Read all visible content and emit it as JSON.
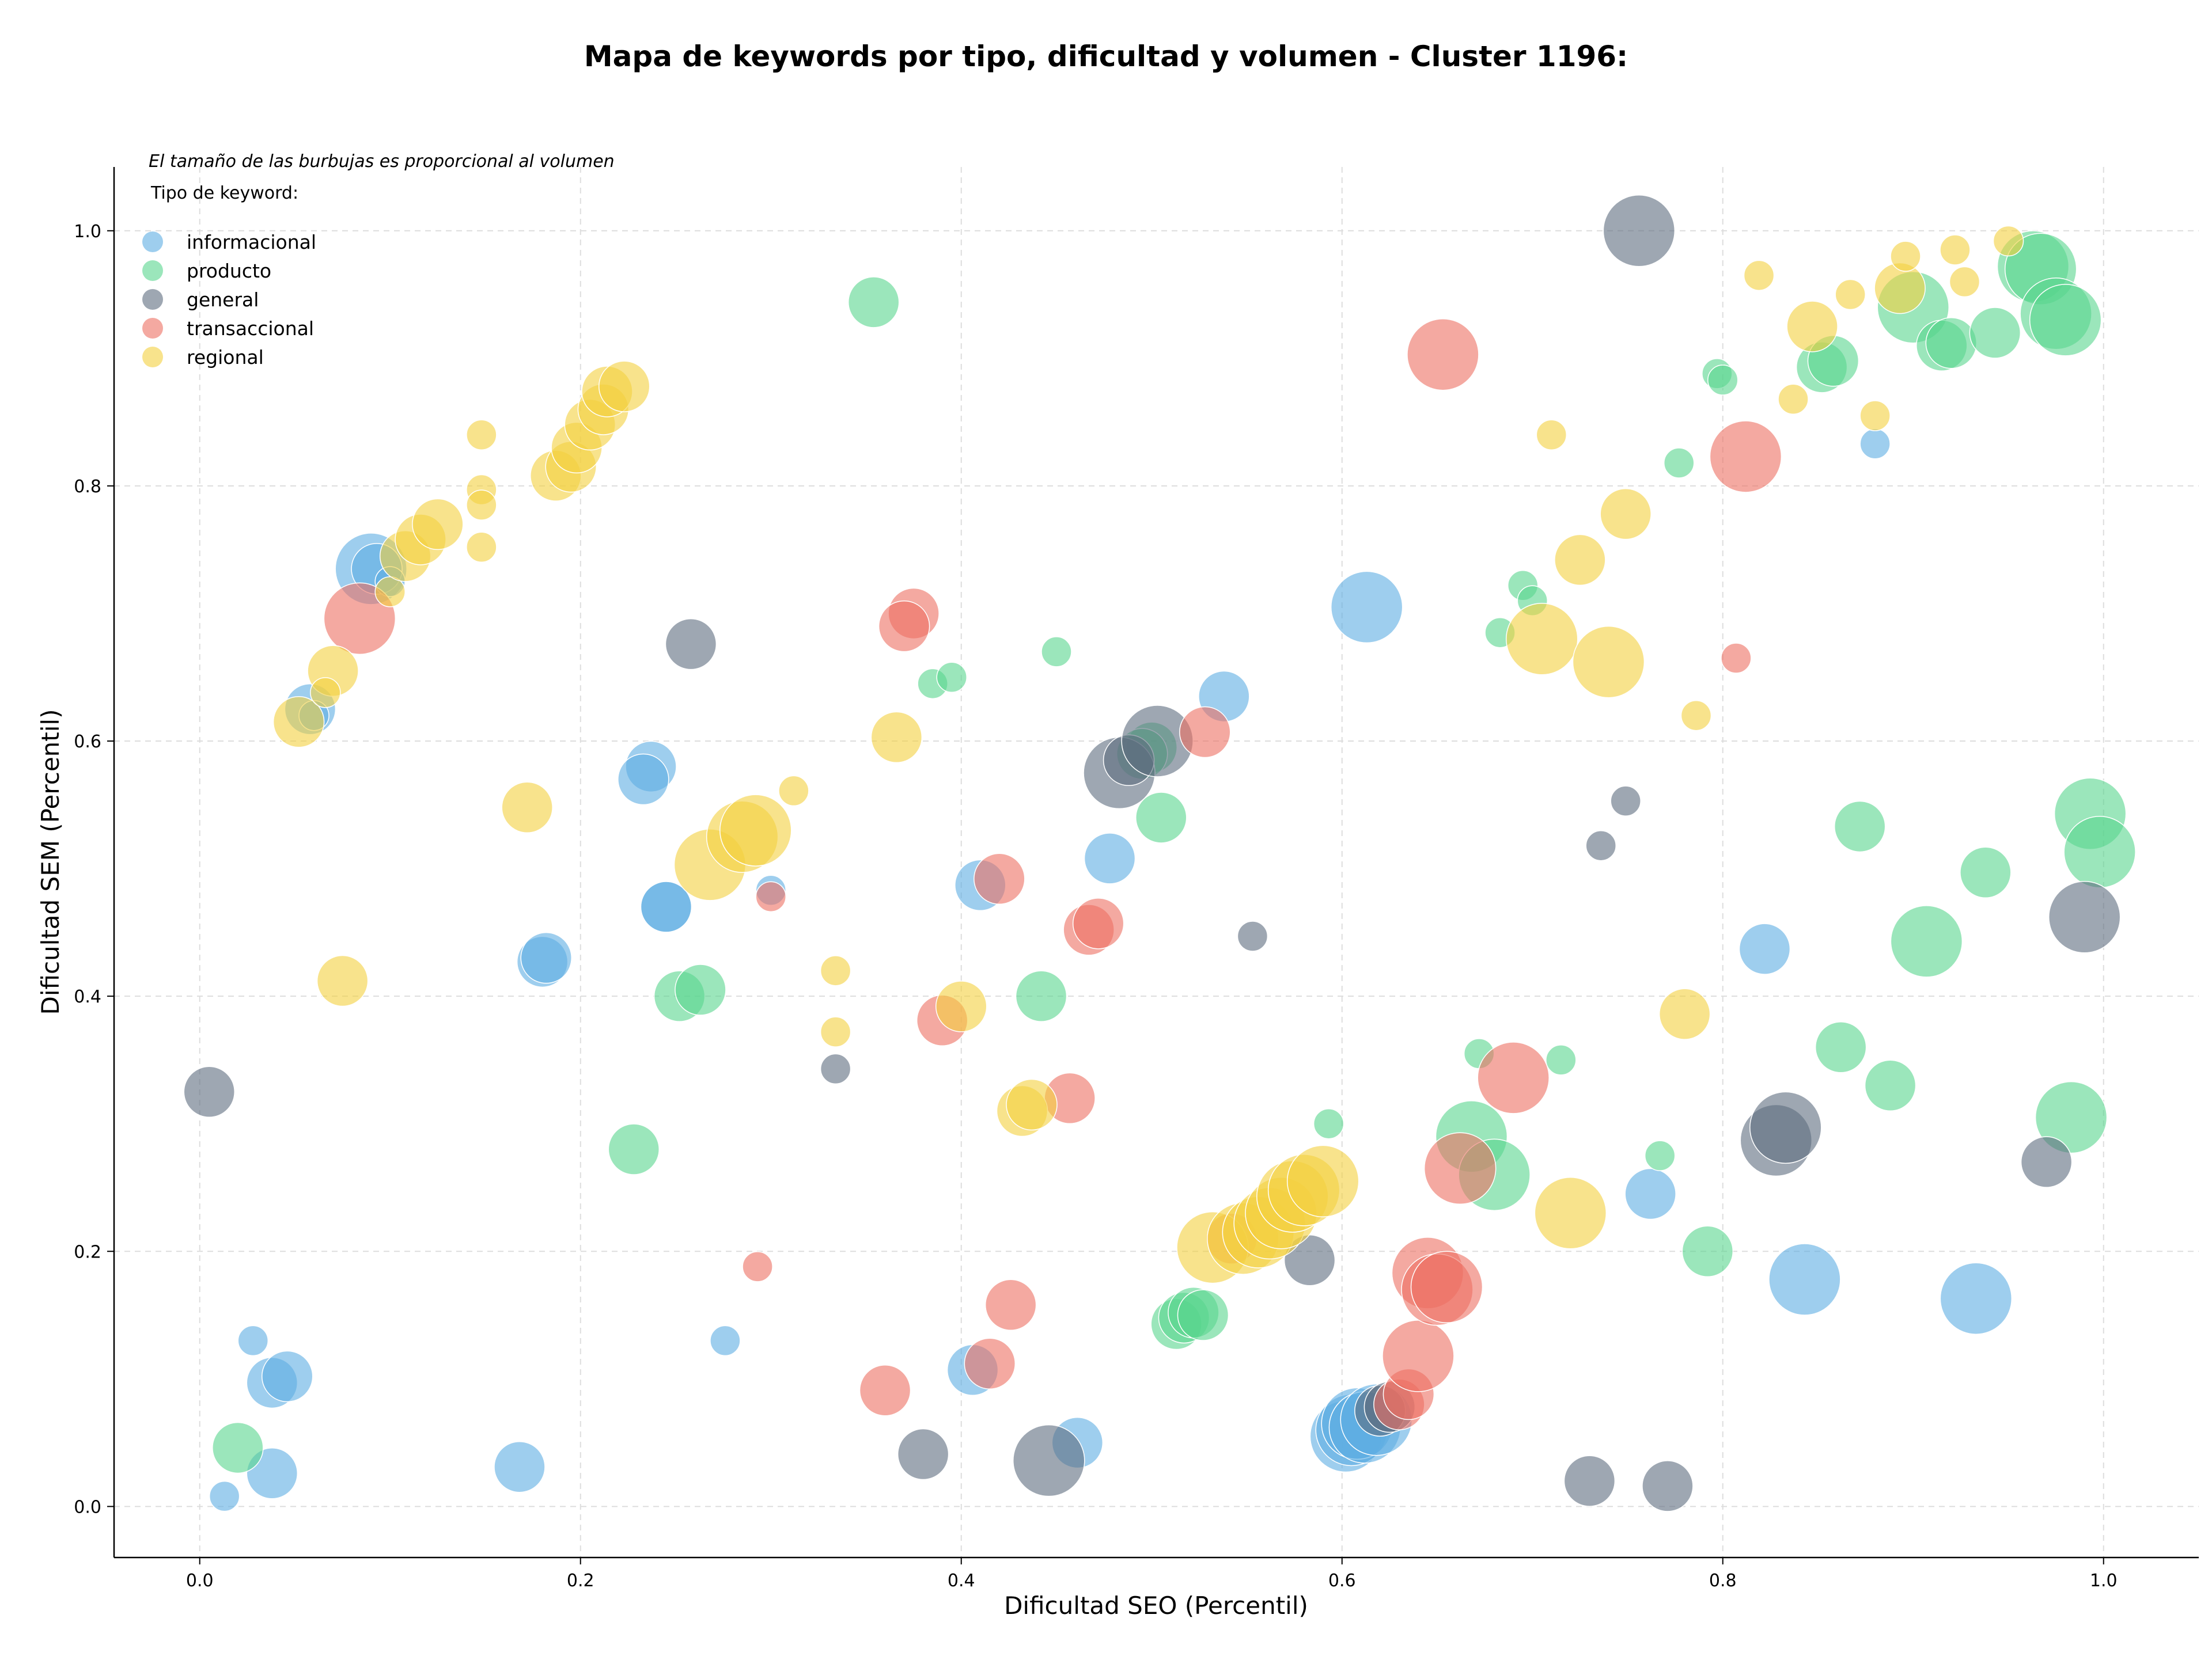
{
  "chart_data": {
    "type": "scatter",
    "title": "Mapa de keywords por tipo, dificultad y volumen - Cluster 1196:",
    "xlabel": "Dificultad SEO (Percentil)",
    "ylabel": "Dificultad SEM (Percentil)",
    "note": "El tamaño de las burbujas es proporcional al volumen",
    "legend_title": "Tipo de keyword:",
    "legend_position": "top-left",
    "grid": true,
    "xlim": [
      -0.045,
      1.05
    ],
    "ylim": [
      -0.04,
      1.05
    ],
    "x_ticks": [
      "0.0",
      "0.2",
      "0.4",
      "0.6",
      "0.8",
      "1.0"
    ],
    "y_ticks": [
      "0.0",
      "0.2",
      "0.4",
      "0.6",
      "0.8",
      "1.0"
    ],
    "series": [
      {
        "name": "informacional",
        "color": "#5dade2",
        "points": [
          [
            0.09,
            0.735,
            3
          ],
          [
            0.093,
            0.735,
            2
          ],
          [
            0.058,
            0.625,
            2
          ],
          [
            0.06,
            0.62,
            1
          ],
          [
            0.1,
            0.725,
            1
          ],
          [
            0.237,
            0.58,
            2
          ],
          [
            0.233,
            0.57,
            2
          ],
          [
            0.245,
            0.47,
            2
          ],
          [
            0.245,
            0.47,
            2
          ],
          [
            0.18,
            0.427,
            2
          ],
          [
            0.182,
            0.43,
            2
          ],
          [
            0.3,
            0.483,
            1
          ],
          [
            0.41,
            0.487,
            2
          ],
          [
            0.478,
            0.508,
            2
          ],
          [
            0.538,
            0.635,
            2
          ],
          [
            0.613,
            0.705,
            3
          ],
          [
            0.88,
            0.833,
            1
          ],
          [
            0.822,
            0.437,
            2
          ],
          [
            0.762,
            0.245,
            2
          ],
          [
            0.843,
            0.178,
            3
          ],
          [
            0.933,
            0.163,
            3
          ],
          [
            0.028,
            0.13,
            1
          ],
          [
            0.276,
            0.13,
            1
          ],
          [
            0.038,
            0.097,
            2
          ],
          [
            0.046,
            0.102,
            2
          ],
          [
            0.013,
            0.008,
            1
          ],
          [
            0.038,
            0.026,
            2
          ],
          [
            0.168,
            0.031,
            2
          ],
          [
            0.406,
            0.107,
            2
          ],
          [
            0.461,
            0.05,
            2
          ],
          [
            0.602,
            0.055,
            3
          ],
          [
            0.605,
            0.06,
            3
          ],
          [
            0.608,
            0.065,
            3
          ],
          [
            0.612,
            0.062,
            3
          ],
          [
            0.618,
            0.068,
            3
          ]
        ]
      },
      {
        "name": "producto",
        "color": "#58d68d",
        "points": [
          [
            0.354,
            0.944,
            2
          ],
          [
            0.45,
            0.67,
            1
          ],
          [
            0.385,
            0.645,
            1
          ],
          [
            0.395,
            0.65,
            1
          ],
          [
            0.5,
            0.595,
            2
          ],
          [
            0.495,
            0.59,
            2
          ],
          [
            0.505,
            0.54,
            2
          ],
          [
            0.442,
            0.4,
            2
          ],
          [
            0.252,
            0.4,
            2
          ],
          [
            0.263,
            0.405,
            2
          ],
          [
            0.228,
            0.28,
            2
          ],
          [
            0.02,
            0.046,
            2
          ],
          [
            0.593,
            0.3,
            1
          ],
          [
            0.672,
            0.355,
            1
          ],
          [
            0.715,
            0.35,
            1
          ],
          [
            0.668,
            0.29,
            3
          ],
          [
            0.68,
            0.26,
            3
          ],
          [
            0.767,
            0.275,
            1
          ],
          [
            0.792,
            0.2,
            2
          ],
          [
            0.513,
            0.143,
            2
          ],
          [
            0.517,
            0.148,
            2
          ],
          [
            0.522,
            0.152,
            2
          ],
          [
            0.527,
            0.15,
            2
          ],
          [
            0.695,
            0.722,
            1
          ],
          [
            0.7,
            0.71,
            1
          ],
          [
            0.683,
            0.685,
            1
          ],
          [
            0.777,
            0.818,
            1
          ],
          [
            0.797,
            0.888,
            1
          ],
          [
            0.8,
            0.883,
            1
          ],
          [
            0.852,
            0.893,
            2
          ],
          [
            0.858,
            0.898,
            2
          ],
          [
            0.9,
            0.94,
            3
          ],
          [
            0.915,
            0.91,
            2
          ],
          [
            0.92,
            0.912,
            2
          ],
          [
            0.943,
            0.92,
            2
          ],
          [
            0.963,
            0.972,
            3
          ],
          [
            0.967,
            0.97,
            3
          ],
          [
            0.975,
            0.935,
            3
          ],
          [
            0.98,
            0.93,
            3
          ],
          [
            0.872,
            0.533,
            2
          ],
          [
            0.938,
            0.497,
            2
          ],
          [
            0.907,
            0.443,
            3
          ],
          [
            0.862,
            0.36,
            2
          ],
          [
            0.888,
            0.33,
            2
          ],
          [
            0.993,
            0.543,
            3
          ],
          [
            0.998,
            0.513,
            3
          ],
          [
            0.983,
            0.305,
            3
          ]
        ]
      },
      {
        "name": "general",
        "color": "#5d6d7e",
        "points": [
          [
            0.258,
            0.676,
            2
          ],
          [
            0.005,
            0.325,
            2
          ],
          [
            0.334,
            0.343,
            1
          ],
          [
            0.483,
            0.575,
            3
          ],
          [
            0.488,
            0.585,
            2
          ],
          [
            0.503,
            0.6,
            3
          ],
          [
            0.553,
            0.447,
            1
          ],
          [
            0.583,
            0.193,
            2
          ],
          [
            0.38,
            0.041,
            2
          ],
          [
            0.446,
            0.036,
            3
          ],
          [
            0.73,
            0.02,
            2
          ],
          [
            0.771,
            0.016,
            2
          ],
          [
            0.736,
            0.518,
            1
          ],
          [
            0.749,
            0.553,
            1
          ],
          [
            0.756,
            1.0,
            3
          ],
          [
            0.828,
            0.287,
            3
          ],
          [
            0.833,
            0.297,
            3
          ],
          [
            0.97,
            0.27,
            2
          ],
          [
            0.99,
            0.462,
            3
          ],
          [
            0.62,
            0.075,
            2
          ],
          [
            0.625,
            0.078,
            2
          ]
        ]
      },
      {
        "name": "transaccional",
        "color": "#ec7063",
        "points": [
          [
            0.084,
            0.696,
            3
          ],
          [
            0.3,
            0.478,
            1
          ],
          [
            0.375,
            0.7,
            2
          ],
          [
            0.37,
            0.69,
            2
          ],
          [
            0.42,
            0.492,
            2
          ],
          [
            0.39,
            0.381,
            2
          ],
          [
            0.457,
            0.32,
            2
          ],
          [
            0.467,
            0.452,
            2
          ],
          [
            0.472,
            0.457,
            2
          ],
          [
            0.528,
            0.607,
            2
          ],
          [
            0.542,
            0.21,
            2
          ],
          [
            0.293,
            0.188,
            1
          ],
          [
            0.36,
            0.091,
            2
          ],
          [
            0.426,
            0.158,
            2
          ],
          [
            0.415,
            0.112,
            2
          ],
          [
            0.63,
            0.08,
            2
          ],
          [
            0.635,
            0.088,
            2
          ],
          [
            0.64,
            0.118,
            3
          ],
          [
            0.645,
            0.183,
            3
          ],
          [
            0.65,
            0.17,
            3
          ],
          [
            0.655,
            0.172,
            3
          ],
          [
            0.662,
            0.265,
            3
          ],
          [
            0.69,
            0.336,
            3
          ],
          [
            0.653,
            0.903,
            3
          ],
          [
            0.812,
            0.823,
            3
          ],
          [
            0.807,
            0.665,
            1
          ]
        ]
      },
      {
        "name": "regional",
        "color": "#f4d03f",
        "points": [
          [
            0.052,
            0.615,
            2
          ],
          [
            0.07,
            0.655,
            2
          ],
          [
            0.066,
            0.638,
            1
          ],
          [
            0.1,
            0.717,
            1
          ],
          [
            0.108,
            0.745,
            2
          ],
          [
            0.116,
            0.758,
            2
          ],
          [
            0.125,
            0.77,
            2
          ],
          [
            0.148,
            0.84,
            1
          ],
          [
            0.148,
            0.797,
            1
          ],
          [
            0.148,
            0.785,
            1
          ],
          [
            0.148,
            0.752,
            1
          ],
          [
            0.187,
            0.808,
            2
          ],
          [
            0.195,
            0.815,
            2
          ],
          [
            0.198,
            0.83,
            2
          ],
          [
            0.205,
            0.848,
            2
          ],
          [
            0.212,
            0.86,
            2
          ],
          [
            0.214,
            0.874,
            2
          ],
          [
            0.223,
            0.878,
            2
          ],
          [
            0.172,
            0.548,
            2
          ],
          [
            0.075,
            0.412,
            2
          ],
          [
            0.268,
            0.503,
            3
          ],
          [
            0.285,
            0.525,
            3
          ],
          [
            0.292,
            0.53,
            3
          ],
          [
            0.312,
            0.561,
            1
          ],
          [
            0.366,
            0.603,
            2
          ],
          [
            0.334,
            0.42,
            1
          ],
          [
            0.334,
            0.372,
            1
          ],
          [
            0.4,
            0.392,
            2
          ],
          [
            0.432,
            0.31,
            2
          ],
          [
            0.437,
            0.315,
            2
          ],
          [
            0.532,
            0.203,
            3
          ],
          [
            0.548,
            0.21,
            3
          ],
          [
            0.556,
            0.215,
            3
          ],
          [
            0.562,
            0.222,
            3
          ],
          [
            0.568,
            0.23,
            3
          ],
          [
            0.574,
            0.243,
            3
          ],
          [
            0.58,
            0.248,
            3
          ],
          [
            0.59,
            0.255,
            3
          ],
          [
            0.72,
            0.23,
            3
          ],
          [
            0.78,
            0.386,
            2
          ],
          [
            0.705,
            0.68,
            3
          ],
          [
            0.725,
            0.742,
            2
          ],
          [
            0.74,
            0.662,
            3
          ],
          [
            0.749,
            0.778,
            2
          ],
          [
            0.71,
            0.84,
            1
          ],
          [
            0.786,
            0.62,
            1
          ],
          [
            0.837,
            0.868,
            1
          ],
          [
            0.847,
            0.925,
            2
          ],
          [
            0.867,
            0.95,
            1
          ],
          [
            0.88,
            0.855,
            1
          ],
          [
            0.893,
            0.955,
            2
          ],
          [
            0.896,
            0.98,
            1
          ],
          [
            0.922,
            0.985,
            1
          ],
          [
            0.927,
            0.96,
            1
          ],
          [
            0.95,
            0.992,
            1
          ],
          [
            0.819,
            0.965,
            1
          ]
        ]
      }
    ]
  }
}
